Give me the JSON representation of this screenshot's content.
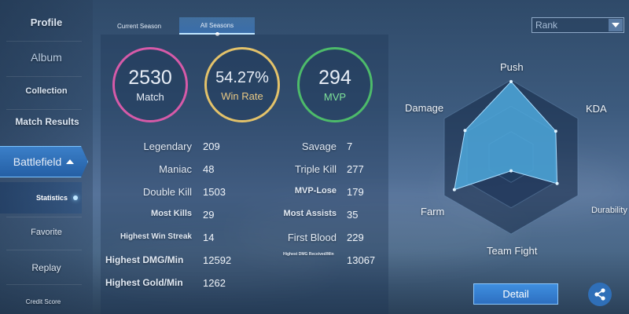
{
  "sidebar": {
    "items": [
      {
        "label": "Profile"
      },
      {
        "label": "Album"
      },
      {
        "label": "Collection"
      },
      {
        "label": "Match Results"
      },
      {
        "label": "Battlefield"
      },
      {
        "label": "Statistics"
      },
      {
        "label": "Favorite"
      },
      {
        "label": "Replay"
      },
      {
        "label": "Credit Score"
      }
    ]
  },
  "tabs": {
    "current": "Current Season",
    "all": "All Seasons"
  },
  "rank_select": {
    "value": "Rank"
  },
  "summary": {
    "match": {
      "value": "2530",
      "label": "Match"
    },
    "win_rate": {
      "value": "54.27%",
      "label": "Win Rate"
    },
    "mvp": {
      "value": "294",
      "label": "MVP"
    }
  },
  "stats_left": [
    {
      "label": "Legendary",
      "value": "209"
    },
    {
      "label": "Maniac",
      "value": "48"
    },
    {
      "label": "Double Kill",
      "value": "1503"
    },
    {
      "label": "Most Kills",
      "value": "29"
    },
    {
      "label": "Highest Win Streak",
      "value": "14"
    },
    {
      "label": "Highest DMG/Min",
      "value": "12592"
    },
    {
      "label": "Highest Gold/Min",
      "value": "1262"
    }
  ],
  "stats_right": [
    {
      "label": "Savage",
      "value": "7"
    },
    {
      "label": "Triple Kill",
      "value": "277"
    },
    {
      "label": "MVP-Lose",
      "value": "179"
    },
    {
      "label": "Most Assists",
      "value": "35"
    },
    {
      "label": "First Blood",
      "value": "229"
    },
    {
      "label": "Highest DMG Received/Min",
      "value": "13067"
    }
  ],
  "radar": {
    "axes": [
      "Push",
      "KDA",
      "Durability",
      "Team Fight",
      "Farm",
      "Damage"
    ],
    "values": [
      0.98,
      0.67,
      0.69,
      0.18,
      0.85,
      0.69
    ],
    "fill_color": "#4ea8dc"
  },
  "buttons": {
    "detail": "Detail"
  },
  "icons": {
    "share": "share-icon",
    "dropdown": "chevron-down-icon",
    "collapse": "chevron-up-icon"
  },
  "colors": {
    "match_ring": "#d65aa8",
    "winrate_ring": "#e3c26a",
    "mvp_ring": "#4dbb6a",
    "accent": "#3b7fc8"
  }
}
